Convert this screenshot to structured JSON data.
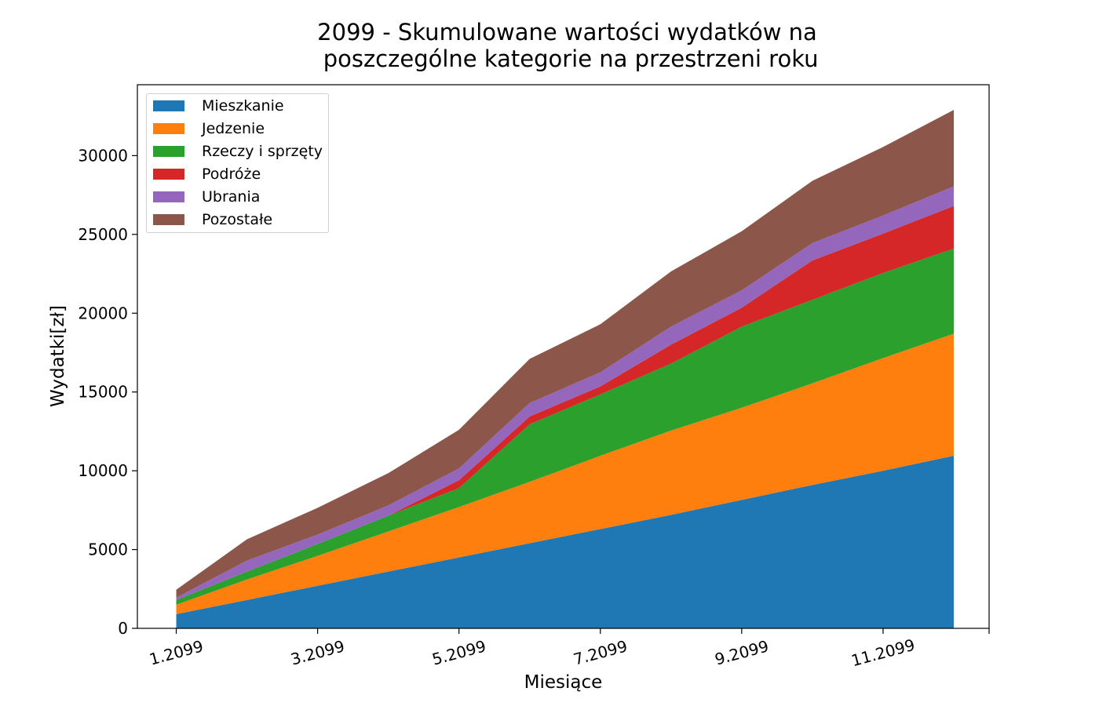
{
  "chart_data": {
    "type": "area",
    "stacked": true,
    "title": "2099 - Skumulowane wartości wydatków na\n poszczególne kategorie na przestrzeni roku",
    "xlabel": "Miesiące",
    "ylabel": "Wydatki[zł]",
    "x": [
      1,
      2,
      3,
      4,
      5,
      6,
      7,
      8,
      9,
      10,
      11,
      12
    ],
    "xticks": [
      {
        "value": 1,
        "label": "1.2099"
      },
      {
        "value": 3,
        "label": "3.2099"
      },
      {
        "value": 5,
        "label": "5.2099"
      },
      {
        "value": 7,
        "label": "7.2099"
      },
      {
        "value": 9,
        "label": "9.2099"
      },
      {
        "value": 11,
        "label": "11.2099"
      }
    ],
    "yticks": [
      0,
      5000,
      10000,
      15000,
      20000,
      25000,
      30000
    ],
    "xlim": [
      0.45,
      12.5
    ],
    "ylim": [
      0,
      34500
    ],
    "legend_position": "upper-left",
    "series": [
      {
        "name": "Mieszkanie",
        "color": "#1f77b4",
        "values": [
          900,
          1800,
          2700,
          3600,
          4500,
          5400,
          6300,
          7200,
          8150,
          9100,
          10000,
          10950
        ]
      },
      {
        "name": "Jedzenie",
        "color": "#ff7f0e",
        "values": [
          600,
          1300,
          1900,
          2550,
          3200,
          3900,
          4650,
          5350,
          5850,
          6450,
          7150,
          7750
        ]
      },
      {
        "name": "Rzeczy i sprzęty",
        "color": "#2ca02c",
        "values": [
          300,
          500,
          750,
          1000,
          1200,
          3650,
          3900,
          4250,
          5150,
          5300,
          5400,
          5400
        ]
      },
      {
        "name": "Podróże",
        "color": "#d62728",
        "values": [
          0,
          0,
          0,
          0,
          500,
          500,
          500,
          1200,
          1200,
          2500,
          2500,
          2700
        ]
      },
      {
        "name": "Ubrania",
        "color": "#9467bd",
        "values": [
          150,
          700,
          600,
          650,
          750,
          850,
          900,
          1150,
          1100,
          1100,
          1150,
          1250
        ]
      },
      {
        "name": "Pozostałe",
        "color": "#8c564b",
        "values": [
          500,
          1350,
          1700,
          2050,
          2450,
          2800,
          3050,
          3500,
          3750,
          3950,
          4350,
          4850
        ]
      }
    ]
  }
}
